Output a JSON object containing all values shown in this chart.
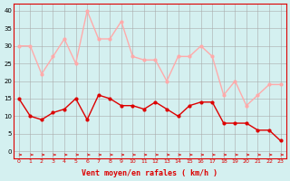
{
  "x": [
    0,
    1,
    2,
    3,
    4,
    5,
    6,
    7,
    8,
    9,
    10,
    11,
    12,
    13,
    14,
    15,
    16,
    17,
    18,
    19,
    20,
    21,
    22,
    23
  ],
  "wind_avg": [
    15,
    10,
    9,
    11,
    12,
    15,
    9,
    16,
    15,
    13,
    13,
    12,
    14,
    12,
    10,
    13,
    14,
    14,
    8,
    8,
    8,
    6,
    6,
    3
  ],
  "wind_gust": [
    30,
    30,
    22,
    27,
    32,
    25,
    40,
    32,
    32,
    37,
    27,
    26,
    26,
    20,
    27,
    27,
    30,
    27,
    16,
    20,
    13,
    16,
    19,
    19
  ],
  "bg_color": "#d4f0f0",
  "avg_color": "#dd0000",
  "gust_color": "#ffaaaa",
  "grid_color": "#aaaaaa",
  "xlabel": "Vent moyen/en rafales ( km/h )",
  "yticks": [
    0,
    5,
    10,
    15,
    20,
    25,
    30,
    35,
    40
  ],
  "ylim": [
    -2,
    42
  ],
  "xlim": [
    -0.5,
    23.5
  ]
}
